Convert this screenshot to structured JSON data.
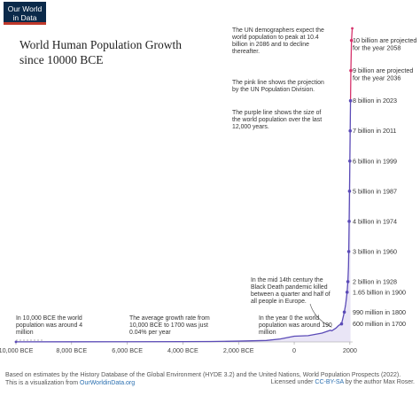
{
  "logo": {
    "line1": "Our World",
    "line2": "in Data"
  },
  "chart_data": {
    "type": "line",
    "title": "World Human Population Growth",
    "subtitle": "since 10000 BCE",
    "xlim": [
      -10000,
      2100
    ],
    "ylim": [
      0,
      10400000000
    ],
    "x_ticks": [
      {
        "value": -10000,
        "label": "10,000 BCE"
      },
      {
        "value": -8000,
        "label": "8,000 BCE"
      },
      {
        "value": -6000,
        "label": "6,000 BCE"
      },
      {
        "value": -4000,
        "label": "4,000 BCE"
      },
      {
        "value": -2000,
        "label": "2,000 BCE"
      },
      {
        "value": 0,
        "label": "0"
      },
      {
        "value": 2000,
        "label": "2000"
      }
    ],
    "series": [
      {
        "color": "#5b4bb7",
        "points": [
          [
            -10000,
            4000000
          ],
          [
            -8000,
            5000000
          ],
          [
            -6000,
            7000000
          ],
          [
            -4000,
            10000000
          ],
          [
            -3000,
            14000000
          ],
          [
            -2000,
            27000000
          ],
          [
            -1000,
            50000000
          ],
          [
            -500,
            100000000
          ],
          [
            0,
            190000000
          ],
          [
            500,
            210000000
          ],
          [
            1000,
            295000000
          ],
          [
            1300,
            390000000
          ],
          [
            1350,
            370000000
          ],
          [
            1500,
            460000000
          ],
          [
            1600,
            550000000
          ],
          [
            1700,
            600000000
          ],
          [
            1750,
            790000000
          ],
          [
            1800,
            990000000
          ],
          [
            1850,
            1260000000
          ],
          [
            1900,
            1650000000
          ],
          [
            1928,
            2000000000
          ],
          [
            1950,
            2500000000
          ],
          [
            1960,
            3000000000
          ],
          [
            1974,
            4000000000
          ],
          [
            1987,
            5000000000
          ],
          [
            1999,
            6000000000
          ],
          [
            2011,
            7000000000
          ],
          [
            2023,
            8000000000
          ]
        ]
      },
      {
        "color": "#d6336c",
        "points": [
          [
            2023,
            8000000000
          ],
          [
            2036,
            9000000000
          ],
          [
            2058,
            10000000000
          ],
          [
            2086,
            10400000000
          ]
        ]
      }
    ],
    "milestones": [
      {
        "x": 1700,
        "y": 600000000,
        "label": "600 million in 1700",
        "color": "#5b4bb7"
      },
      {
        "x": 1800,
        "y": 990000000,
        "label": "990 million in 1800",
        "color": "#5b4bb7"
      },
      {
        "x": 1900,
        "y": 1650000000,
        "label": "1.65 billion in 1900",
        "color": "#5b4bb7"
      },
      {
        "x": 1928,
        "y": 2000000000,
        "label": "2 billion in 1928",
        "color": "#5b4bb7"
      },
      {
        "x": 1960,
        "y": 3000000000,
        "label": "3 billion in 1960",
        "color": "#5b4bb7"
      },
      {
        "x": 1974,
        "y": 4000000000,
        "label": "4 billion in 1974",
        "color": "#5b4bb7"
      },
      {
        "x": 1987,
        "y": 5000000000,
        "label": "5 billion in 1987",
        "color": "#5b4bb7"
      },
      {
        "x": 1999,
        "y": 6000000000,
        "label": "6 billion in 1999",
        "color": "#5b4bb7"
      },
      {
        "x": 2011,
        "y": 7000000000,
        "label": "7 billion in 2011",
        "color": "#5b4bb7"
      },
      {
        "x": 2023,
        "y": 8000000000,
        "label": "8 billion in 2023",
        "color": "#5b4bb7"
      },
      {
        "x": 2036,
        "y": 9000000000,
        "label": "9 billion are projected for the year 2036",
        "color": "#d6336c"
      },
      {
        "x": 2058,
        "y": 10000000000,
        "label": "10 billion are projected for the year 2058",
        "color": "#d6336c"
      }
    ],
    "annotations": {
      "bce10000": "In 10,000 BCE the world population was around 4 million",
      "growth": "The average growth rate from 10,000 BCE to 1700 was just 0.04% per year",
      "year0": "In the year 0 the world population was around 190 million",
      "blackdeath": "In the mid 14th century the Black Death pandemic killed between a quarter and half of all people in Europe.",
      "purple": "The purple line shows the size of the world population over the last 12,000 years.",
      "pink": "The pink line shows the projection by the UN Population Division.",
      "peak": "The UN demographers expect the world population to peak at 10.4 billion in 2086 and to decline thereafter."
    }
  },
  "footer": {
    "source_line": "Based on estimates by the History Database of the Global Environment (HYDE 3.2) and the United Nations, World Population Prospects (2022).",
    "viz_prefix": "This is a visualization from ",
    "viz_link": "OurWorldinData.org",
    "license_prefix": "Licensed under ",
    "license_link": "CC-BY-SA",
    "license_suffix": " by the author Max Roser."
  }
}
